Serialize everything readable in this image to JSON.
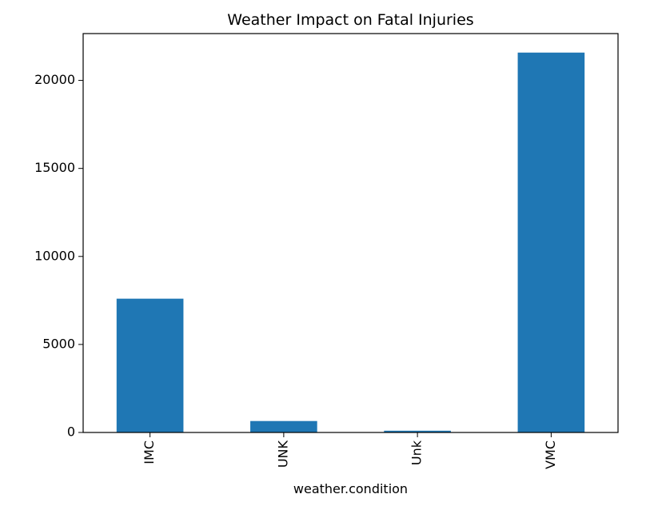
{
  "chart_data": {
    "type": "bar",
    "title": "Weather Impact on Fatal Injuries",
    "xlabel": "weather.condition",
    "ylabel": "",
    "categories": [
      "IMC",
      "UNK",
      "Unk",
      "VMC"
    ],
    "values": [
      7600,
      650,
      100,
      21580
    ],
    "ylim": [
      0,
      22660
    ],
    "yticks": [
      0,
      5000,
      10000,
      15000,
      20000
    ],
    "ytick_labels": [
      "0",
      "5000",
      "10000",
      "15000",
      "20000"
    ],
    "bar_color": "#1f77b4",
    "grid": false,
    "legend": "none"
  }
}
